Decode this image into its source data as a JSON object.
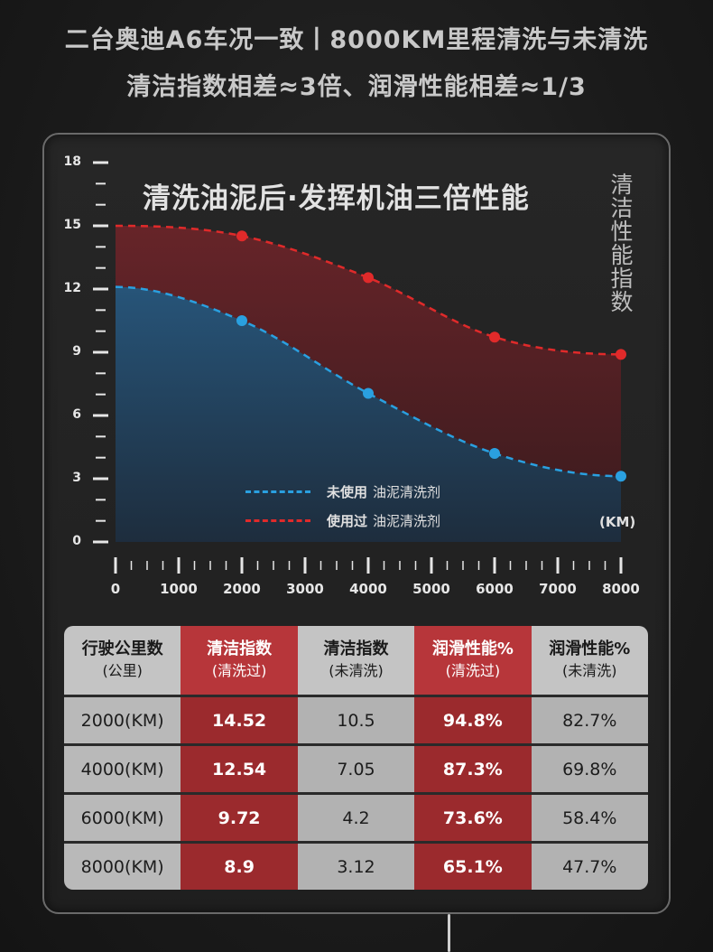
{
  "header": {
    "line1": "二台奥迪A6车况一致丨8000KM里程清洗与未清洗",
    "line2": "清洁指数相差≈3倍、润滑性能相差≈1/3"
  },
  "chart_data": {
    "type": "area",
    "title": "清洗油泥后·发挥机油三倍性能",
    "ylabel": "清洁性能指数",
    "xlabel": "(KM)",
    "x": [
      0,
      2000,
      4000,
      6000,
      8000
    ],
    "xticks": [
      0,
      1000,
      2000,
      3000,
      4000,
      5000,
      6000,
      7000,
      8000
    ],
    "yticks": [
      0,
      3,
      6,
      9,
      12,
      15,
      18
    ],
    "xlim": [
      0,
      8000
    ],
    "ylim": [
      0,
      18
    ],
    "series": [
      {
        "name_bold": "使用过",
        "name_rest": "油泥清洗剂",
        "color": "#e02a2a",
        "fill": "#5a2226",
        "values": [
          15,
          14.52,
          12.54,
          9.72,
          8.9
        ],
        "markers": [
          2000,
          4000,
          6000,
          8000
        ]
      },
      {
        "name_bold": "未使用",
        "name_rest": "油泥清洗剂",
        "color": "#2aa0e0",
        "fill": "#224a68",
        "values": [
          12.1,
          10.5,
          7.05,
          4.2,
          3.12
        ],
        "markers": [
          2000,
          4000,
          6000,
          8000
        ]
      }
    ]
  },
  "table": {
    "headers": [
      {
        "main": "行驶公里数",
        "sub": "(公里)"
      },
      {
        "main": "清洁指数",
        "sub": "(清洗过)"
      },
      {
        "main": "清洁指数",
        "sub": "(未清洗)"
      },
      {
        "main": "润滑性能%",
        "sub": "(清洗过)"
      },
      {
        "main": "润滑性能%",
        "sub": "(未清洗)"
      }
    ],
    "rows": [
      [
        "2000(KM)",
        "14.52",
        "10.5",
        "94.8%",
        "82.7%"
      ],
      [
        "4000(KM)",
        "12.54",
        "7.05",
        "87.3%",
        "69.8%"
      ],
      [
        "6000(KM)",
        "9.72",
        "4.2",
        "73.6%",
        "58.4%"
      ],
      [
        "8000(KM)",
        "8.9",
        "3.12",
        "65.1%",
        "47.7%"
      ]
    ]
  }
}
